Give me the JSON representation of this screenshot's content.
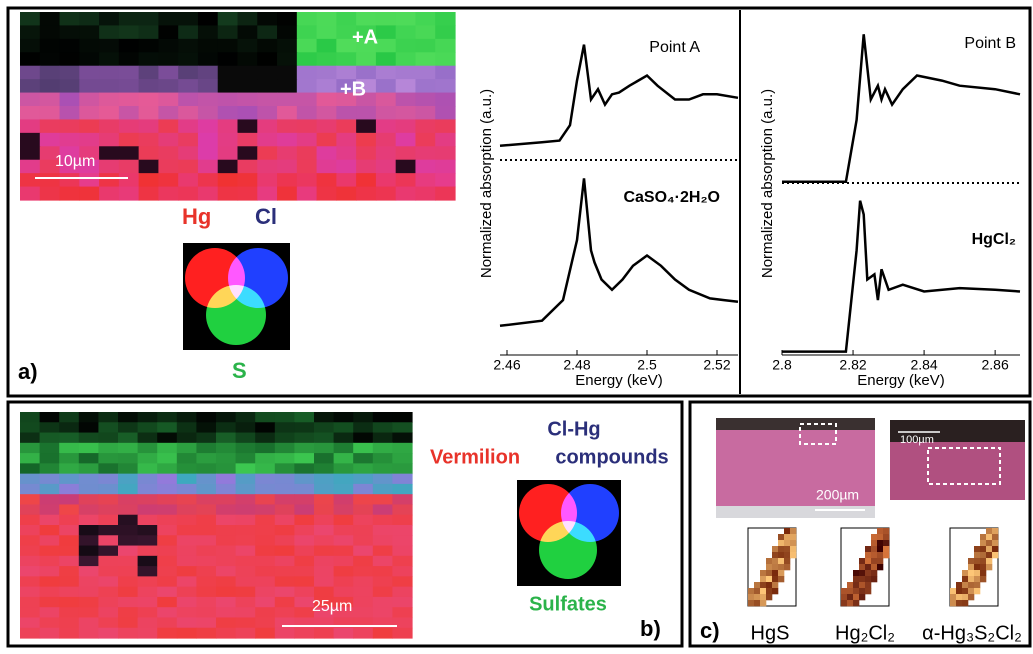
{
  "chart_data": [
    {
      "type": "line",
      "x_label": "Energy (keV)",
      "y_label": "Normalized absorption (a.u.)",
      "xlim": [
        2.458,
        2.526
      ],
      "xticks": [
        2.46,
        2.48,
        2.5,
        2.52
      ],
      "ylim": [
        0,
        2
      ],
      "series": [
        {
          "name": "Point A",
          "color": "#000000",
          "x": [
            2.458,
            2.47,
            2.475,
            2.478,
            2.48,
            2.482,
            2.484,
            2.486,
            2.488,
            2.49,
            2.492,
            2.495,
            2.5,
            2.503,
            2.508,
            2.512,
            2.516,
            2.52,
            2.526
          ],
          "values": [
            1.22,
            1.24,
            1.25,
            1.34,
            1.6,
            1.81,
            1.49,
            1.55,
            1.46,
            1.52,
            1.53,
            1.57,
            1.63,
            1.57,
            1.49,
            1.49,
            1.52,
            1.52,
            1.5
          ]
        },
        {
          "name": "CaSO₄·2H₂O",
          "color": "#000000",
          "x": [
            2.458,
            2.47,
            2.476,
            2.48,
            2.482,
            2.484,
            2.485,
            2.487,
            2.49,
            2.493,
            2.496,
            2.5,
            2.504,
            2.508,
            2.512,
            2.518,
            2.522,
            2.526
          ],
          "values": [
            0.17,
            0.2,
            0.32,
            0.67,
            1.03,
            0.61,
            0.54,
            0.44,
            0.38,
            0.44,
            0.52,
            0.58,
            0.52,
            0.44,
            0.38,
            0.33,
            0.32,
            0.31
          ]
        }
      ]
    },
    {
      "type": "line",
      "x_label": "Energy (keV)",
      "y_label": "Normalized absorption (a.u.)",
      "xlim": [
        2.8,
        2.867
      ],
      "xticks": [
        2.8,
        2.82,
        2.84,
        2.86
      ],
      "ylim": [
        0,
        2
      ],
      "series": [
        {
          "name": "Point B",
          "color": "#000000",
          "x": [
            2.8,
            2.818,
            2.821,
            2.823,
            2.825,
            2.827,
            2.828,
            2.829,
            2.831,
            2.834,
            2.838,
            2.845,
            2.85,
            2.86,
            2.867
          ],
          "values": [
            1.01,
            1.01,
            1.37,
            1.87,
            1.49,
            1.57,
            1.49,
            1.55,
            1.46,
            1.55,
            1.63,
            1.6,
            1.57,
            1.55,
            1.52
          ]
        },
        {
          "name": "HgCl₂",
          "color": "#000000",
          "x": [
            2.8,
            2.818,
            2.821,
            2.822,
            2.823,
            2.824,
            2.826,
            2.827,
            2.828,
            2.83,
            2.834,
            2.84,
            2.85,
            2.86,
            2.867
          ],
          "values": [
            0.02,
            0.02,
            0.61,
            0.9,
            0.82,
            0.44,
            0.47,
            0.32,
            0.5,
            0.38,
            0.41,
            0.37,
            0.39,
            0.38,
            0.37
          ]
        }
      ]
    }
  ],
  "panels": {
    "a": {
      "label": "a)",
      "point_a": "+A",
      "point_b": "+B",
      "scale": "10µm",
      "venn": [
        "Hg",
        "Cl",
        "S"
      ]
    },
    "b": {
      "label": "b)",
      "scale": "25µm",
      "venn": [
        "Vermilion",
        "Cl-Hg",
        "compounds",
        "Sulfates"
      ]
    },
    "c": {
      "label": "c)",
      "scale_large": "200µm",
      "scale_small": "100µm",
      "maps": [
        "HgS",
        "Hg₂Cl₂",
        "α-Hg₃S₂Cl₂"
      ]
    }
  }
}
